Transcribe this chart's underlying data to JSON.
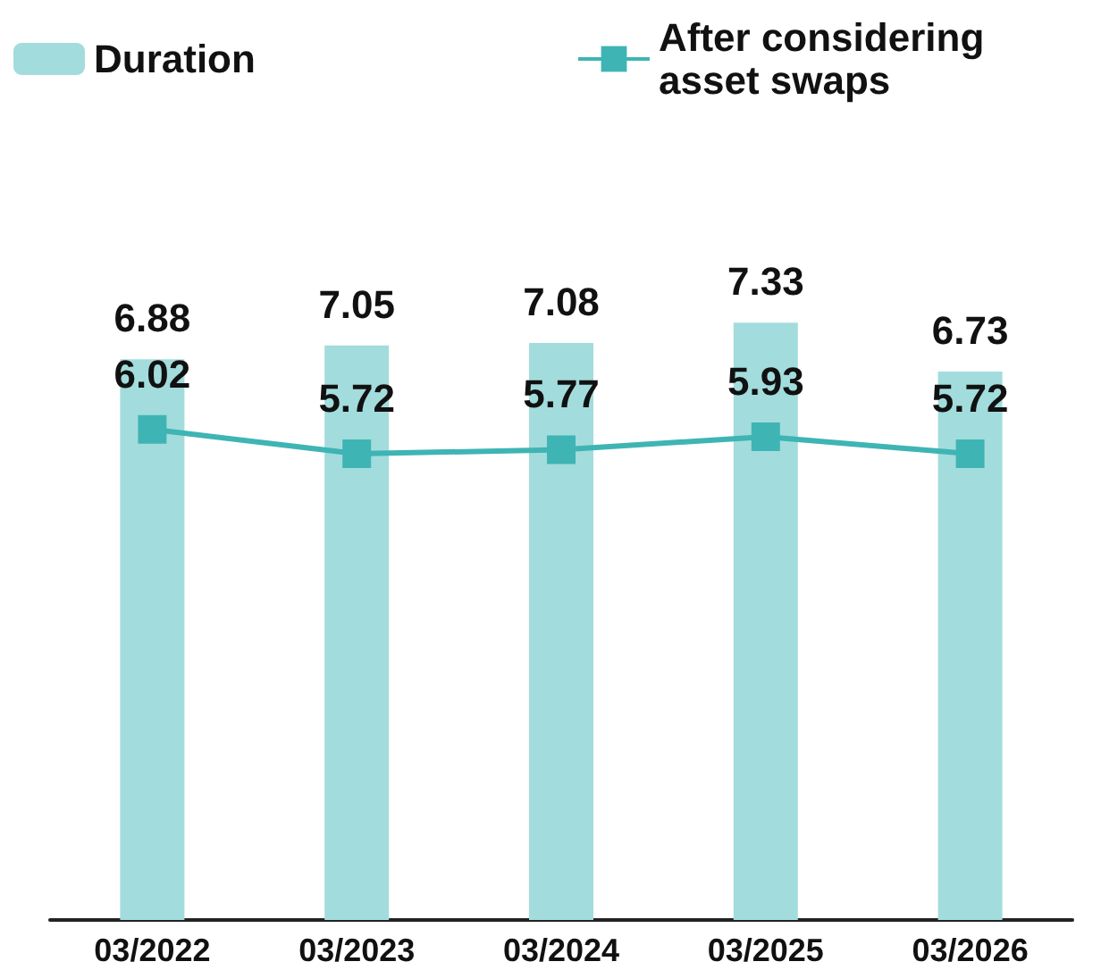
{
  "chart_data": {
    "type": "bar",
    "categories": [
      "03/2022",
      "03/2023",
      "03/2024",
      "03/2025",
      "03/2026"
    ],
    "series": [
      {
        "name": "Duration",
        "color": "#a3dcdc",
        "values": [
          6.88,
          7.05,
          7.08,
          7.33,
          6.73
        ]
      },
      {
        "name": "After considering asset swaps",
        "type": "line",
        "color": "#3fb4b4",
        "values": [
          6.02,
          5.72,
          5.77,
          5.93,
          5.72
        ]
      }
    ],
    "data_labels": true,
    "legend": "top",
    "grid": false,
    "tick_labels": "x",
    "marker": "square",
    "line_style": "solid"
  }
}
